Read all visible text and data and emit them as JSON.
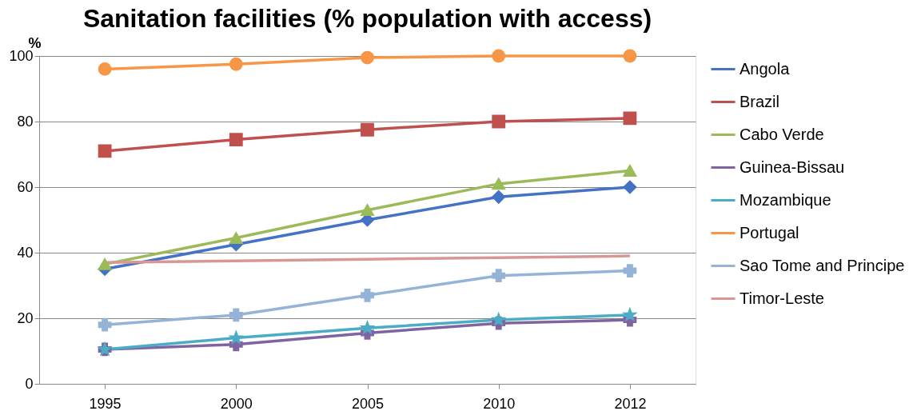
{
  "chart_data": {
    "type": "line",
    "title": "Sanitation facilities (% population with access)",
    "ylabel": "%",
    "categories": [
      "1995",
      "2000",
      "2005",
      "2010",
      "2012"
    ],
    "series": [
      {
        "name": "Angola",
        "color": "#4472c4",
        "marker": "diamond",
        "values": [
          35,
          42.5,
          50,
          57,
          60
        ]
      },
      {
        "name": "Brazil",
        "color": "#c0504d",
        "marker": "square",
        "values": [
          71,
          74.5,
          77.5,
          80,
          81
        ]
      },
      {
        "name": "Cabo Verde",
        "color": "#9bbb59",
        "marker": "triangle",
        "values": [
          36.5,
          44.5,
          53,
          61,
          65
        ]
      },
      {
        "name": "Guinea-Bissau",
        "color": "#8064a2",
        "marker": "cross",
        "values": [
          10.5,
          12,
          15.5,
          18.5,
          19.5
        ]
      },
      {
        "name": "Mozambique",
        "color": "#4bacc6",
        "marker": "star",
        "values": [
          10.5,
          14,
          17,
          19.5,
          21
        ]
      },
      {
        "name": "Portugal",
        "color": "#f79646",
        "marker": "circle",
        "values": [
          96,
          97.5,
          99.5,
          100,
          100
        ]
      },
      {
        "name": "Sao Tome and Principe",
        "color": "#95b3d7",
        "marker": "cross",
        "values": [
          18,
          21,
          27,
          33,
          34.5
        ]
      },
      {
        "name": "Timor-Leste",
        "color": "#d99694",
        "marker": "none",
        "values": [
          37,
          37.5,
          38,
          38.5,
          39
        ]
      }
    ],
    "ylim": [
      0,
      100
    ],
    "yticks": [
      0,
      20,
      40,
      60,
      80,
      100
    ],
    "grid": "y",
    "legend": "right"
  }
}
